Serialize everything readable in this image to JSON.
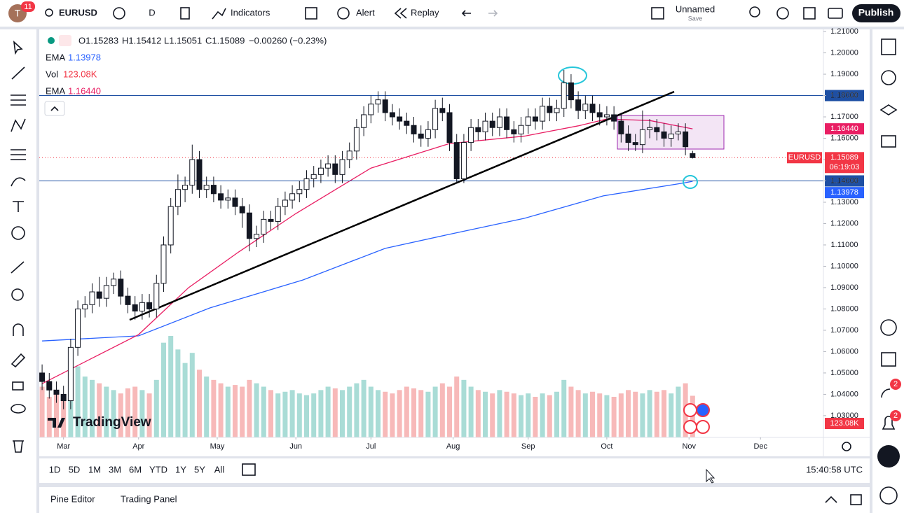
{
  "toolbar": {
    "avatar": "T",
    "badge": "11",
    "symbol": "EURUSD",
    "interval": "D",
    "indicators": "Indicators",
    "alert": "Alert",
    "replay": "Replay",
    "layout_name": "Unnamed",
    "save": "Save",
    "publish": "Publish"
  },
  "legend": {
    "ohlc": [
      "O1.15283",
      "H1.15412",
      "L1.15051",
      "C1.15089",
      "−0.00260 (−0.23%)"
    ]
  },
  "logo": "TradingView",
  "sidebar_badges": [
    "2",
    "2"
  ],
  "range_bar": {
    "ranges": [
      "1D",
      "5D",
      "1M",
      "3M",
      "6M",
      "YTD",
      "1Y",
      "5Y",
      "All"
    ],
    "clock": "15:40:58 UTC"
  },
  "bottom_panel": {
    "tabs": [
      "Pine Editor",
      "Trading Panel"
    ]
  },
  "chart_data": {
    "type": "candlestick",
    "symbol": "EURUSD",
    "countdown": "06:19:03",
    "xlim": [
      -0.8,
      218.6
    ],
    "xticks": [
      {
        "value": 6,
        "label": "Mar"
      },
      {
        "value": 27,
        "label": "Apr"
      },
      {
        "value": 49,
        "label": "May"
      },
      {
        "value": 71,
        "label": "Jun"
      },
      {
        "value": 92,
        "label": "Jul"
      },
      {
        "value": 115,
        "label": "Aug"
      },
      {
        "value": 136,
        "label": "Sep"
      },
      {
        "value": 158,
        "label": "Oct"
      },
      {
        "value": 181,
        "label": "Nov"
      },
      {
        "value": 201,
        "label": "Dec"
      }
    ],
    "ylim": [
      1.0198,
      1.211
    ],
    "yticks": [
      {
        "value": 1.03,
        "label": "1.03000"
      },
      {
        "value": 1.04,
        "label": "1.04000"
      },
      {
        "value": 1.05,
        "label": "1.05000"
      },
      {
        "value": 1.06,
        "label": "1.06000"
      },
      {
        "value": 1.07,
        "label": "1.07000"
      },
      {
        "value": 1.08,
        "label": "1.08000"
      },
      {
        "value": 1.09,
        "label": "1.09000"
      },
      {
        "value": 1.1,
        "label": "1.10000"
      },
      {
        "value": 1.11,
        "label": "1.11000"
      },
      {
        "value": 1.12,
        "label": "1.12000"
      },
      {
        "value": 1.13,
        "label": "1.13000"
      },
      {
        "value": 1.14,
        "label": "1.14000"
      },
      {
        "value": 1.15,
        "label": "1.15000"
      },
      {
        "value": 1.16,
        "label": "1.16000"
      },
      {
        "value": 1.17,
        "label": "1.17000"
      },
      {
        "value": 1.18,
        "label": "1.18000"
      },
      {
        "value": 1.19,
        "label": "1.19000"
      },
      {
        "value": 1.2,
        "label": "1.20000"
      },
      {
        "value": 1.21,
        "label": "1.21000"
      }
    ],
    "up_color": "#ffffff",
    "down_color": "#131722",
    "x": [
      0,
      2,
      4,
      6,
      8,
      10,
      12,
      14,
      16,
      18,
      20,
      22,
      24,
      26,
      28,
      30,
      32,
      34,
      36,
      38,
      40,
      42,
      44,
      46,
      48,
      50,
      52,
      54,
      56,
      58,
      60,
      62,
      64,
      66,
      68,
      70,
      72,
      74,
      76,
      78,
      80,
      82,
      84,
      86,
      88,
      90,
      92,
      94,
      96,
      98,
      100,
      102,
      104,
      106,
      108,
      110,
      112,
      114,
      116,
      118,
      120,
      122,
      124,
      126,
      128,
      130,
      132,
      134,
      136,
      138,
      140,
      142,
      144,
      146,
      148,
      150,
      152,
      154,
      156,
      158,
      160,
      162,
      164,
      166,
      168,
      170,
      172,
      174,
      176,
      178,
      180,
      182
    ],
    "open": [
      1.05,
      1.046,
      1.042,
      1.04,
      1.037,
      1.062,
      1.08,
      1.082,
      1.088,
      1.085,
      1.091,
      1.094,
      1.086,
      1.082,
      1.079,
      1.083,
      1.08,
      1.092,
      1.11,
      1.128,
      1.136,
      1.138,
      1.15,
      1.136,
      1.138,
      1.134,
      1.131,
      1.132,
      1.128,
      1.125,
      1.113,
      1.115,
      1.122,
      1.121,
      1.128,
      1.131,
      1.134,
      1.136,
      1.141,
      1.143,
      1.146,
      1.148,
      1.143,
      1.15,
      1.154,
      1.165,
      1.171,
      1.176,
      1.178,
      1.172,
      1.17,
      1.168,
      1.166,
      1.162,
      1.16,
      1.164,
      1.174,
      1.172,
      1.158,
      1.141,
      1.158,
      1.165,
      1.163,
      1.168,
      1.165,
      1.17,
      1.164,
      1.162,
      1.166,
      1.17,
      1.168,
      1.175,
      1.172,
      1.174,
      1.186,
      1.178,
      1.173,
      1.176,
      1.172,
      1.17,
      1.171,
      1.168,
      1.162,
      1.158,
      1.157,
      1.164,
      1.165,
      1.163,
      1.16,
      1.162,
      1.163,
      1.15283
    ],
    "high": [
      1.054,
      1.05,
      1.046,
      1.044,
      1.066,
      1.084,
      1.086,
      1.092,
      1.095,
      1.095,
      1.097,
      1.098,
      1.09,
      1.086,
      1.087,
      1.087,
      1.096,
      1.114,
      1.132,
      1.143,
      1.142,
      1.157,
      1.154,
      1.142,
      1.142,
      1.138,
      1.136,
      1.136,
      1.132,
      1.129,
      1.119,
      1.126,
      1.126,
      1.132,
      1.135,
      1.138,
      1.14,
      1.145,
      1.147,
      1.15,
      1.152,
      1.152,
      1.154,
      1.158,
      1.169,
      1.175,
      1.18,
      1.182,
      1.182,
      1.176,
      1.174,
      1.172,
      1.17,
      1.166,
      1.168,
      1.178,
      1.179,
      1.176,
      1.162,
      1.162,
      1.169,
      1.169,
      1.172,
      1.172,
      1.174,
      1.174,
      1.168,
      1.17,
      1.174,
      1.174,
      1.179,
      1.179,
      1.178,
      1.192,
      1.19,
      1.182,
      1.18,
      1.18,
      1.176,
      1.175,
      1.175,
      1.172,
      1.166,
      1.162,
      1.173,
      1.169,
      1.169,
      1.167,
      1.166,
      1.167,
      1.167,
      1.15412
    ],
    "low": [
      1.042,
      1.038,
      1.036,
      1.033,
      1.033,
      1.058,
      1.076,
      1.078,
      1.081,
      1.081,
      1.087,
      1.082,
      1.078,
      1.075,
      1.075,
      1.076,
      1.076,
      1.088,
      1.106,
      1.124,
      1.13,
      1.134,
      1.132,
      1.132,
      1.13,
      1.127,
      1.127,
      1.124,
      1.118,
      1.107,
      1.109,
      1.111,
      1.117,
      1.117,
      1.124,
      1.127,
      1.13,
      1.132,
      1.137,
      1.139,
      1.142,
      1.139,
      1.139,
      1.146,
      1.15,
      1.161,
      1.167,
      1.172,
      1.168,
      1.166,
      1.164,
      1.162,
      1.158,
      1.156,
      1.156,
      1.16,
      1.168,
      1.154,
      1.139,
      1.139,
      1.154,
      1.159,
      1.159,
      1.161,
      1.161,
      1.16,
      1.158,
      1.158,
      1.162,
      1.164,
      1.164,
      1.168,
      1.168,
      1.17,
      1.174,
      1.169,
      1.169,
      1.168,
      1.166,
      1.166,
      1.164,
      1.158,
      1.154,
      1.154,
      1.153,
      1.16,
      1.159,
      1.156,
      1.156,
      1.159,
      1.152,
      1.15051
    ],
    "close": [
      1.046,
      1.042,
      1.04,
      1.037,
      1.062,
      1.08,
      1.082,
      1.088,
      1.085,
      1.091,
      1.094,
      1.086,
      1.082,
      1.079,
      1.083,
      1.08,
      1.092,
      1.11,
      1.128,
      1.136,
      1.138,
      1.15,
      1.136,
      1.138,
      1.134,
      1.131,
      1.132,
      1.128,
      1.125,
      1.113,
      1.115,
      1.122,
      1.121,
      1.128,
      1.131,
      1.134,
      1.136,
      1.141,
      1.143,
      1.146,
      1.148,
      1.143,
      1.15,
      1.154,
      1.165,
      1.171,
      1.176,
      1.178,
      1.172,
      1.17,
      1.168,
      1.166,
      1.162,
      1.16,
      1.164,
      1.174,
      1.172,
      1.158,
      1.141,
      1.158,
      1.165,
      1.163,
      1.168,
      1.165,
      1.17,
      1.164,
      1.162,
      1.166,
      1.17,
      1.168,
      1.175,
      1.172,
      1.174,
      1.186,
      1.178,
      1.173,
      1.176,
      1.172,
      1.17,
      1.171,
      1.168,
      1.162,
      1.158,
      1.157,
      1.164,
      1.165,
      1.163,
      1.16,
      1.162,
      1.163,
      1.156,
      1.15089
    ],
    "volume": {
      "name": "Vol",
      "up_color": "#a9dcd6",
      "down_color": "#f7b9b9",
      "ylim": [
        0,
        300000
      ],
      "values": [
        150000,
        120000,
        130000,
        110000,
        200000,
        210000,
        180000,
        170000,
        160000,
        150000,
        140000,
        130000,
        145000,
        150000,
        140000,
        130000,
        170000,
        280000,
        300000,
        260000,
        220000,
        250000,
        200000,
        180000,
        170000,
        160000,
        150000,
        155000,
        150000,
        170000,
        160000,
        150000,
        140000,
        130000,
        135000,
        140000,
        130000,
        125000,
        130000,
        140000,
        150000,
        145000,
        140000,
        150000,
        160000,
        170000,
        150000,
        140000,
        135000,
        130000,
        140000,
        150000,
        145000,
        140000,
        135000,
        150000,
        160000,
        150000,
        180000,
        170000,
        150000,
        140000,
        135000,
        130000,
        140000,
        135000,
        130000,
        125000,
        130000,
        120000,
        130000,
        125000,
        135000,
        170000,
        150000,
        140000,
        130000,
        135000,
        130000,
        125000,
        120000,
        130000,
        140000,
        135000,
        130000,
        140000,
        135000,
        140000,
        130000,
        150000,
        160000,
        123080
      ],
      "value_labels": [
        null,
        null,
        null,
        null,
        null,
        null,
        null,
        null,
        null,
        null,
        null,
        null,
        null,
        null,
        null,
        null,
        null,
        null,
        null,
        null,
        null,
        null,
        null,
        null,
        null,
        null,
        null,
        null,
        null,
        null,
        null,
        null,
        null,
        null,
        null,
        null,
        null,
        null,
        null,
        null,
        null,
        null,
        null,
        null,
        null,
        null,
        null,
        null,
        null,
        null,
        null,
        null,
        null,
        null,
        null,
        null,
        null,
        null,
        null,
        null,
        null,
        null,
        null,
        null,
        null,
        null,
        null,
        null,
        null,
        null,
        null,
        null,
        null,
        null,
        null,
        null,
        null,
        null,
        null,
        null,
        null,
        null,
        null,
        null,
        null,
        null,
        null,
        null,
        null,
        null,
        null,
        "123.08K"
      ]
    },
    "series": [
      {
        "name": "EMA",
        "color": "#2962ff",
        "x": [
          0,
          27,
          47,
          73,
          96,
          114,
          135,
          157,
          179,
          182
        ],
        "values": [
          1.065,
          1.0674,
          1.0805,
          1.0936,
          1.1084,
          1.115,
          1.1225,
          1.133,
          1.1389,
          1.13978
        ]
      },
      {
        "name": "EMA",
        "color": "#e91e63",
        "x": [
          0,
          27,
          41,
          55,
          71,
          92,
          114,
          135,
          150,
          158,
          170,
          182
        ],
        "values": [
          1.045,
          1.068,
          1.09,
          1.1067,
          1.1247,
          1.146,
          1.1575,
          1.161,
          1.1658,
          1.169,
          1.1683,
          1.1644
        ],
        "value_labels": [
          null,
          null,
          null,
          null,
          null,
          null,
          null,
          null,
          null,
          null,
          null,
          "1.16440"
        ]
      }
    ],
    "levels": [
      {
        "value": 1.18,
        "label": "1.18000",
        "color": "#1e4fa3"
      },
      {
        "value": 1.14,
        "label": "1.14000",
        "color": "#1e4fa3"
      }
    ]
  }
}
